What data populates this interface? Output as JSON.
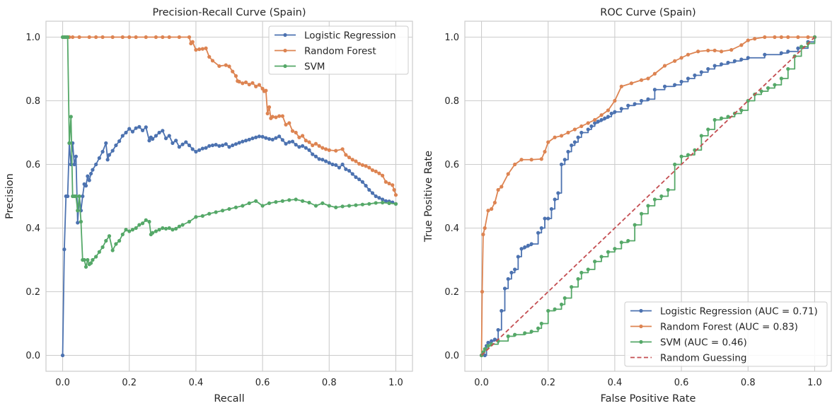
{
  "colors": {
    "blue": "#4c72b0",
    "orange": "#dd8452",
    "green": "#55a868",
    "red": "#c44e52"
  },
  "chart_data": [
    {
      "type": "line",
      "title": "Precision-Recall Curve (Spain)",
      "xlabel": "Recall",
      "ylabel": "Precision",
      "xlim": [
        -0.05,
        1.05
      ],
      "ylim": [
        -0.05,
        1.05
      ],
      "xticks": [
        0.0,
        0.2,
        0.4,
        0.6,
        0.8,
        1.0
      ],
      "yticks": [
        0.0,
        0.2,
        0.4,
        0.6,
        0.8,
        1.0
      ],
      "xtick_labels": [
        "0.0",
        "0.2",
        "0.4",
        "0.6",
        "0.8",
        "1.0"
      ],
      "ytick_labels": [
        "0.0",
        "0.2",
        "0.4",
        "0.6",
        "0.8",
        "1.0"
      ],
      "grid": true,
      "legend_position": "top-right",
      "series": [
        {
          "name": "Logistic Regression",
          "color": "#4c72b0",
          "marker": "circle",
          "x": [
            0.0,
            0.005,
            0.01,
            0.015,
            0.02,
            0.025,
            0.03,
            0.035,
            0.04,
            0.045,
            0.05,
            0.055,
            0.06,
            0.065,
            0.07,
            0.075,
            0.08,
            0.085,
            0.09,
            0.1,
            0.11,
            0.12,
            0.13,
            0.135,
            0.14,
            0.15,
            0.16,
            0.17,
            0.18,
            0.19,
            0.2,
            0.21,
            0.22,
            0.23,
            0.24,
            0.25,
            0.26,
            0.265,
            0.27,
            0.28,
            0.29,
            0.3,
            0.31,
            0.32,
            0.33,
            0.34,
            0.35,
            0.36,
            0.37,
            0.38,
            0.39,
            0.4,
            0.41,
            0.42,
            0.43,
            0.44,
            0.45,
            0.46,
            0.47,
            0.48,
            0.49,
            0.5,
            0.51,
            0.52,
            0.53,
            0.54,
            0.55,
            0.56,
            0.57,
            0.58,
            0.59,
            0.6,
            0.61,
            0.62,
            0.63,
            0.64,
            0.65,
            0.66,
            0.67,
            0.68,
            0.69,
            0.7,
            0.71,
            0.72,
            0.73,
            0.74,
            0.75,
            0.76,
            0.77,
            0.78,
            0.79,
            0.8,
            0.81,
            0.82,
            0.83,
            0.84,
            0.85,
            0.86,
            0.87,
            0.88,
            0.89,
            0.9,
            0.91,
            0.92,
            0.93,
            0.94,
            0.95,
            0.96,
            0.97,
            0.98,
            0.99,
            1.0
          ],
          "y": [
            0.0,
            0.333,
            0.5,
            0.5,
            0.667,
            0.6,
            0.667,
            0.6,
            0.625,
            0.417,
            0.5,
            0.455,
            0.5,
            0.538,
            0.533,
            0.563,
            0.55,
            0.571,
            0.583,
            0.6,
            0.62,
            0.64,
            0.667,
            0.615,
            0.63,
            0.643,
            0.66,
            0.673,
            0.69,
            0.7,
            0.712,
            0.703,
            0.714,
            0.718,
            0.707,
            0.717,
            0.675,
            0.685,
            0.68,
            0.69,
            0.7,
            0.706,
            0.682,
            0.69,
            0.667,
            0.675,
            0.655,
            0.663,
            0.67,
            0.66,
            0.648,
            0.64,
            0.645,
            0.65,
            0.652,
            0.658,
            0.66,
            0.662,
            0.658,
            0.66,
            0.664,
            0.655,
            0.66,
            0.664,
            0.668,
            0.672,
            0.675,
            0.678,
            0.682,
            0.685,
            0.688,
            0.687,
            0.683,
            0.68,
            0.678,
            0.683,
            0.688,
            0.677,
            0.665,
            0.67,
            0.672,
            0.662,
            0.655,
            0.658,
            0.652,
            0.645,
            0.632,
            0.625,
            0.617,
            0.615,
            0.61,
            0.605,
            0.6,
            0.598,
            0.59,
            0.6,
            0.585,
            0.58,
            0.57,
            0.56,
            0.553,
            0.545,
            0.533,
            0.52,
            0.51,
            0.5,
            0.495,
            0.49,
            0.485,
            0.484,
            0.481,
            0.476
          ]
        },
        {
          "name": "Random Forest",
          "color": "#dd8452",
          "marker": "circle",
          "x": [
            0.005,
            0.01,
            0.015,
            0.02,
            0.03,
            0.05,
            0.08,
            0.1,
            0.12,
            0.15,
            0.18,
            0.2,
            0.22,
            0.25,
            0.28,
            0.3,
            0.32,
            0.35,
            0.38,
            0.385,
            0.39,
            0.4,
            0.41,
            0.42,
            0.43,
            0.44,
            0.45,
            0.47,
            0.49,
            0.5,
            0.51,
            0.52,
            0.525,
            0.53,
            0.54,
            0.55,
            0.56,
            0.57,
            0.58,
            0.59,
            0.6,
            0.605,
            0.61,
            0.615,
            0.62,
            0.625,
            0.63,
            0.64,
            0.65,
            0.66,
            0.67,
            0.68,
            0.69,
            0.7,
            0.71,
            0.72,
            0.73,
            0.74,
            0.75,
            0.76,
            0.77,
            0.78,
            0.79,
            0.8,
            0.82,
            0.84,
            0.85,
            0.86,
            0.87,
            0.88,
            0.89,
            0.9,
            0.91,
            0.92,
            0.93,
            0.94,
            0.95,
            0.96,
            0.97,
            0.98,
            0.99,
            0.995,
            1.0
          ],
          "y": [
            1.0,
            1.0,
            1.0,
            1.0,
            1.0,
            1.0,
            1.0,
            1.0,
            1.0,
            1.0,
            1.0,
            1.0,
            1.0,
            1.0,
            1.0,
            1.0,
            1.0,
            1.0,
            1.0,
            0.98,
            0.985,
            0.96,
            0.962,
            0.963,
            0.965,
            0.938,
            0.926,
            0.909,
            0.912,
            0.908,
            0.892,
            0.878,
            0.862,
            0.86,
            0.855,
            0.858,
            0.851,
            0.856,
            0.845,
            0.85,
            0.838,
            0.83,
            0.832,
            0.76,
            0.78,
            0.745,
            0.75,
            0.748,
            0.752,
            0.752,
            0.725,
            0.73,
            0.705,
            0.7,
            0.685,
            0.69,
            0.675,
            0.67,
            0.66,
            0.665,
            0.658,
            0.652,
            0.648,
            0.645,
            0.643,
            0.648,
            0.63,
            0.622,
            0.615,
            0.61,
            0.602,
            0.598,
            0.595,
            0.59,
            0.582,
            0.578,
            0.572,
            0.565,
            0.545,
            0.54,
            0.535,
            0.52,
            0.504
          ]
        },
        {
          "name": "SVM",
          "color": "#55a868",
          "marker": "circle",
          "x": [
            0.0,
            0.005,
            0.01,
            0.015,
            0.02,
            0.025,
            0.03,
            0.035,
            0.04,
            0.045,
            0.05,
            0.055,
            0.06,
            0.065,
            0.07,
            0.075,
            0.08,
            0.085,
            0.09,
            0.1,
            0.11,
            0.12,
            0.13,
            0.14,
            0.15,
            0.16,
            0.17,
            0.18,
            0.19,
            0.2,
            0.21,
            0.22,
            0.23,
            0.24,
            0.25,
            0.26,
            0.265,
            0.27,
            0.28,
            0.29,
            0.3,
            0.31,
            0.32,
            0.33,
            0.34,
            0.35,
            0.36,
            0.38,
            0.4,
            0.42,
            0.44,
            0.46,
            0.48,
            0.5,
            0.52,
            0.54,
            0.56,
            0.58,
            0.6,
            0.62,
            0.64,
            0.66,
            0.68,
            0.7,
            0.72,
            0.74,
            0.76,
            0.78,
            0.8,
            0.82,
            0.84,
            0.86,
            0.88,
            0.9,
            0.92,
            0.94,
            0.96,
            0.98,
            1.0
          ],
          "y": [
            1.0,
            1.0,
            1.0,
            1.0,
            0.667,
            0.75,
            0.5,
            0.5,
            0.5,
            0.455,
            0.5,
            0.42,
            0.3,
            0.3,
            0.278,
            0.3,
            0.286,
            0.29,
            0.3,
            0.31,
            0.325,
            0.34,
            0.36,
            0.375,
            0.33,
            0.35,
            0.36,
            0.38,
            0.395,
            0.39,
            0.395,
            0.4,
            0.41,
            0.415,
            0.425,
            0.42,
            0.38,
            0.385,
            0.39,
            0.395,
            0.4,
            0.398,
            0.4,
            0.395,
            0.398,
            0.405,
            0.41,
            0.42,
            0.435,
            0.438,
            0.445,
            0.45,
            0.455,
            0.46,
            0.465,
            0.47,
            0.478,
            0.485,
            0.47,
            0.478,
            0.482,
            0.485,
            0.488,
            0.49,
            0.485,
            0.48,
            0.47,
            0.478,
            0.47,
            0.465,
            0.468,
            0.47,
            0.472,
            0.474,
            0.476,
            0.479,
            0.48,
            0.478,
            0.476
          ]
        }
      ]
    },
    {
      "type": "line",
      "title": "ROC Curve (Spain)",
      "xlabel": "False Positive Rate",
      "ylabel": "True Positive Rate",
      "xlim": [
        -0.05,
        1.05
      ],
      "ylim": [
        -0.05,
        1.05
      ],
      "xticks": [
        0.0,
        0.2,
        0.4,
        0.6,
        0.8,
        1.0
      ],
      "yticks": [
        0.0,
        0.2,
        0.4,
        0.6,
        0.8,
        1.0
      ],
      "xtick_labels": [
        "0.0",
        "0.2",
        "0.4",
        "0.6",
        "0.8",
        "1.0"
      ],
      "ytick_labels": [
        "0.0",
        "0.2",
        "0.4",
        "0.6",
        "0.8",
        "1.0"
      ],
      "grid": true,
      "legend_position": "bottom-right",
      "series": [
        {
          "name": "Logistic Regression (AUC = 0.71)",
          "color": "#4c72b0",
          "marker": "circle",
          "step": true,
          "x": [
            0.0,
            0.01,
            0.015,
            0.02,
            0.03,
            0.04,
            0.05,
            0.06,
            0.07,
            0.08,
            0.09,
            0.1,
            0.11,
            0.12,
            0.13,
            0.14,
            0.15,
            0.17,
            0.18,
            0.19,
            0.2,
            0.21,
            0.22,
            0.23,
            0.24,
            0.25,
            0.26,
            0.27,
            0.28,
            0.29,
            0.3,
            0.32,
            0.33,
            0.34,
            0.35,
            0.36,
            0.37,
            0.38,
            0.39,
            0.4,
            0.42,
            0.44,
            0.46,
            0.48,
            0.5,
            0.52,
            0.55,
            0.58,
            0.6,
            0.62,
            0.64,
            0.66,
            0.68,
            0.7,
            0.72,
            0.74,
            0.76,
            0.78,
            0.8,
            0.85,
            0.9,
            0.92,
            0.95,
            0.98,
            1.0
          ],
          "y": [
            0.0,
            0.0,
            0.03,
            0.04,
            0.045,
            0.05,
            0.08,
            0.14,
            0.21,
            0.24,
            0.26,
            0.27,
            0.31,
            0.335,
            0.34,
            0.345,
            0.35,
            0.385,
            0.4,
            0.43,
            0.43,
            0.46,
            0.49,
            0.51,
            0.6,
            0.615,
            0.64,
            0.66,
            0.67,
            0.685,
            0.7,
            0.71,
            0.72,
            0.73,
            0.735,
            0.74,
            0.745,
            0.75,
            0.76,
            0.765,
            0.775,
            0.785,
            0.79,
            0.8,
            0.805,
            0.835,
            0.845,
            0.85,
            0.86,
            0.87,
            0.88,
            0.89,
            0.9,
            0.91,
            0.915,
            0.92,
            0.925,
            0.93,
            0.935,
            0.945,
            0.95,
            0.955,
            0.965,
            0.985,
            1.0
          ]
        },
        {
          "name": "Random Forest (AUC = 0.83)",
          "color": "#dd8452",
          "marker": "circle",
          "step": false,
          "x": [
            0.0,
            0.002,
            0.005,
            0.01,
            0.02,
            0.03,
            0.04,
            0.05,
            0.06,
            0.08,
            0.1,
            0.12,
            0.15,
            0.18,
            0.19,
            0.2,
            0.22,
            0.24,
            0.26,
            0.28,
            0.3,
            0.32,
            0.34,
            0.36,
            0.38,
            0.4,
            0.42,
            0.45,
            0.48,
            0.5,
            0.52,
            0.55,
            0.58,
            0.6,
            0.62,
            0.65,
            0.68,
            0.7,
            0.72,
            0.75,
            0.78,
            0.8,
            0.82,
            0.85,
            0.88,
            0.9,
            0.92,
            0.95,
            0.98,
            1.0
          ],
          "y": [
            0.0,
            0.2,
            0.38,
            0.4,
            0.455,
            0.46,
            0.48,
            0.52,
            0.53,
            0.57,
            0.6,
            0.615,
            0.615,
            0.617,
            0.64,
            0.67,
            0.685,
            0.69,
            0.7,
            0.71,
            0.72,
            0.73,
            0.74,
            0.755,
            0.77,
            0.8,
            0.845,
            0.855,
            0.865,
            0.87,
            0.885,
            0.91,
            0.925,
            0.935,
            0.945,
            0.955,
            0.958,
            0.958,
            0.955,
            0.96,
            0.975,
            0.99,
            0.995,
            1.0,
            1.0,
            1.0,
            1.0,
            1.0,
            1.0,
            1.0
          ]
        },
        {
          "name": "SVM (AUC = 0.46)",
          "color": "#55a868",
          "marker": "circle",
          "step": true,
          "x": [
            0.0,
            0.005,
            0.01,
            0.02,
            0.03,
            0.05,
            0.08,
            0.1,
            0.13,
            0.15,
            0.17,
            0.18,
            0.2,
            0.22,
            0.24,
            0.25,
            0.27,
            0.29,
            0.3,
            0.32,
            0.34,
            0.36,
            0.38,
            0.4,
            0.42,
            0.44,
            0.46,
            0.48,
            0.5,
            0.52,
            0.54,
            0.56,
            0.58,
            0.6,
            0.62,
            0.64,
            0.66,
            0.68,
            0.7,
            0.72,
            0.74,
            0.76,
            0.78,
            0.8,
            0.82,
            0.84,
            0.86,
            0.88,
            0.9,
            0.92,
            0.94,
            0.96,
            0.98,
            1.0
          ],
          "y": [
            0.0,
            0.01,
            0.02,
            0.03,
            0.035,
            0.045,
            0.06,
            0.065,
            0.07,
            0.075,
            0.085,
            0.1,
            0.14,
            0.145,
            0.16,
            0.18,
            0.215,
            0.24,
            0.26,
            0.27,
            0.295,
            0.31,
            0.325,
            0.335,
            0.355,
            0.36,
            0.41,
            0.445,
            0.47,
            0.49,
            0.5,
            0.52,
            0.6,
            0.625,
            0.63,
            0.645,
            0.69,
            0.71,
            0.74,
            0.745,
            0.75,
            0.76,
            0.77,
            0.8,
            0.82,
            0.83,
            0.84,
            0.85,
            0.87,
            0.9,
            0.94,
            0.97,
            0.98,
            1.0
          ]
        },
        {
          "name": "Random Guessing",
          "color": "#c44e52",
          "marker": "none",
          "dashed": true,
          "x": [
            0.0,
            1.0
          ],
          "y": [
            0.0,
            1.0
          ]
        }
      ]
    }
  ]
}
